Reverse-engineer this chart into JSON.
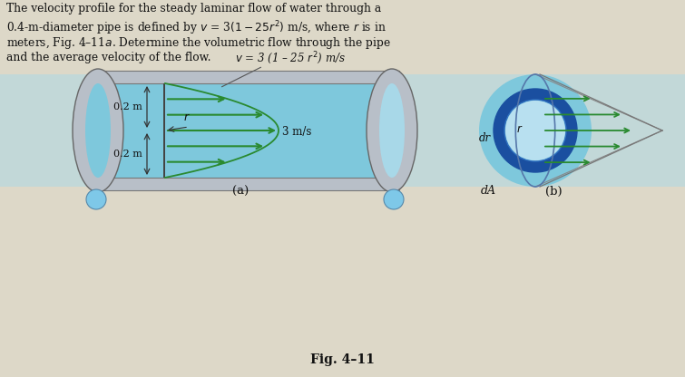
{
  "bg_color": "#ddd8c8",
  "text_color": "#111111",
  "pipe_outer_color": "#b8bfc8",
  "pipe_inner_color": "#7ec8dc",
  "pipe_mid_color": "#5ab0cc",
  "pipe_shadow_color": "#a0aab4",
  "pipe_highlight": "#d0dce4",
  "arrow_green": "#2a8a30",
  "blue_ring_dark": "#1a4fa0",
  "blue_ring_mid": "#3070c0",
  "label_02m_top": "0.2 m",
  "label_02m_bot": "0.2 m",
  "label_r": "r",
  "label_3ms": "3 m/s",
  "label_v": "v = 3 (1 – 25 r²) m/s",
  "label_dA": "dA",
  "label_dr": "dr",
  "label_a": "(a)",
  "label_b": "(b)",
  "fig_label": "Fig. 4–11",
  "title_line1": "The velocity profile for the steady laminar flow of water through a",
  "title_line2": "0.4-m-diameter pipe is defined by $v$ = 3$(1 - 25r^2)$ m/s, where $r$ is in",
  "title_line3": "meters, Fig. 4–11$a$. Determine the volumetric flow through the pipe",
  "title_line4": "and the average velocity of the flow."
}
